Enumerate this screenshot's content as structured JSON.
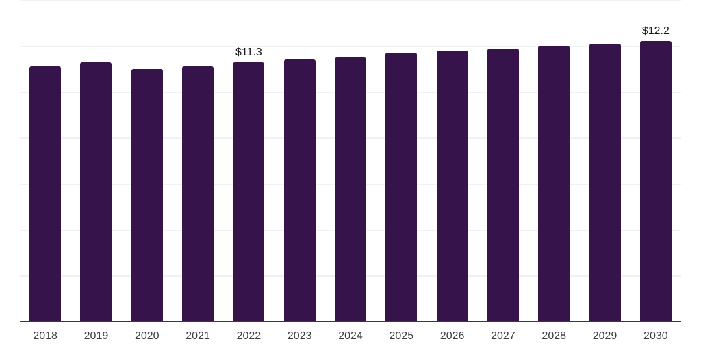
{
  "chart_data": {
    "type": "bar",
    "title": "",
    "xlabel": "",
    "ylabel": "",
    "categories": [
      "2018",
      "2019",
      "2020",
      "2021",
      "2022",
      "2023",
      "2024",
      "2025",
      "2026",
      "2027",
      "2028",
      "2029",
      "2030"
    ],
    "values": [
      11.1,
      11.3,
      11.0,
      11.1,
      11.3,
      11.4,
      11.5,
      11.7,
      11.8,
      11.9,
      12.0,
      12.1,
      12.2
    ],
    "value_prefix": "$",
    "data_labels": {
      "2022": "$11.3",
      "2030": "$12.2"
    },
    "ylim": [
      0,
      14
    ],
    "gridline_step": 2,
    "grid": "horizontal",
    "legend_position": "none",
    "y_tick_labels_visible": false
  },
  "style": {
    "bar_color": "#36134B",
    "axis_line_color": "#3A3A3A",
    "gridline_color": "#F1F1F1",
    "category_label_color": "#3D3D3D",
    "data_label_color": "#1A1A1A",
    "background_color": "#FFFFFF"
  }
}
